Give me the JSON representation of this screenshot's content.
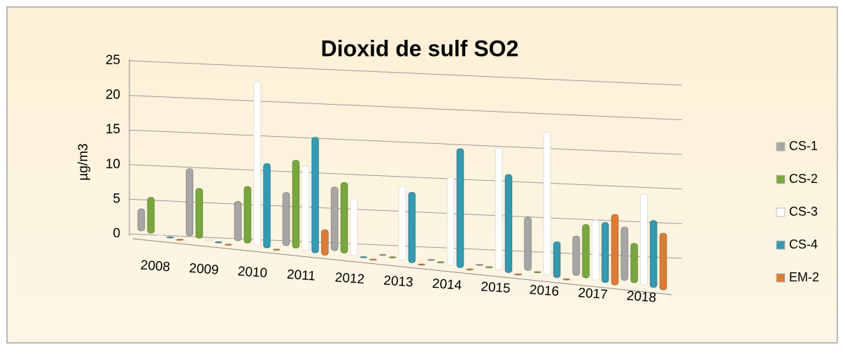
{
  "chart_data": {
    "type": "bar3d",
    "title": "Dioxid de sulf SO2",
    "y_label": "µg/m3",
    "categories": [
      "2008",
      "2009",
      "2010",
      "2011",
      "2012",
      "2013",
      "2014",
      "2015",
      "2016",
      "2017",
      "2018"
    ],
    "series": [
      {
        "name": "CS-1",
        "color": "#a6a6a6",
        "values": [
          3,
          9.5,
          5.5,
          7.5,
          9,
          0,
          0,
          0,
          7.5,
          5.5,
          7.5
        ]
      },
      {
        "name": "CS-2",
        "color": "#77a83a",
        "values": [
          5,
          7,
          8,
          12.5,
          10,
          0,
          0,
          0,
          0,
          7.5,
          5.5
        ]
      },
      {
        "name": "CS-3",
        "color": "#ffffff",
        "values": [
          0,
          0,
          23.5,
          12,
          8,
          10.5,
          12.5,
          17.5,
          20.5,
          8.5,
          13
        ]
      },
      {
        "name": "CS-4",
        "color": "#2f9bb5",
        "values": [
          0,
          0,
          12,
          16.5,
          0,
          10,
          17,
          14,
          5,
          8.5,
          9.5
        ]
      },
      {
        "name": "EM-2",
        "color": "#e07b30",
        "values": [
          0,
          0,
          0,
          3.5,
          0,
          0,
          0,
          0,
          0,
          10,
          8
        ]
      }
    ],
    "ylim": [
      0,
      25
    ],
    "yticks": [
      0,
      5,
      10,
      15,
      20,
      25
    ],
    "grid": true,
    "legend": "right"
  }
}
